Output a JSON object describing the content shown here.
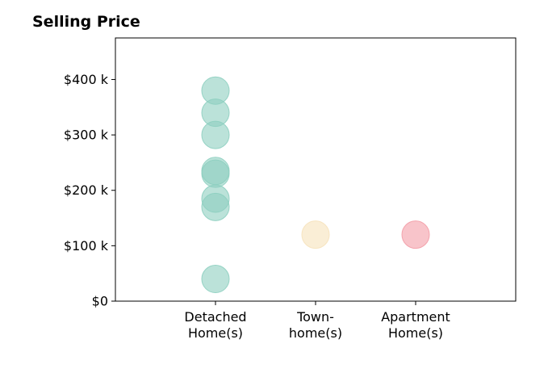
{
  "chart_data": {
    "type": "scatter",
    "title": "Selling Price",
    "xlabel": "",
    "ylabel": "",
    "categories": [
      {
        "lines": [
          "Detached",
          "Home(s)"
        ],
        "color": "#8dcfc0"
      },
      {
        "lines": [
          "Town-",
          "home(s)"
        ],
        "color": "#f6e2bb"
      },
      {
        "lines": [
          "Apartment",
          "Home(s)"
        ],
        "color": "#f39ca6"
      }
    ],
    "points": [
      {
        "category": 0,
        "y": 380000
      },
      {
        "category": 0,
        "y": 340000
      },
      {
        "category": 0,
        "y": 300000
      },
      {
        "category": 0,
        "y": 235000
      },
      {
        "category": 0,
        "y": 230000
      },
      {
        "category": 0,
        "y": 185000
      },
      {
        "category": 0,
        "y": 170000
      },
      {
        "category": 0,
        "y": 40000
      },
      {
        "category": 1,
        "y": 120000
      },
      {
        "category": 2,
        "y": 120000
      }
    ],
    "ylim": [
      0,
      475000
    ],
    "xlim": [
      -1,
      3
    ],
    "yticks": [
      {
        "value": 0,
        "label": "$0"
      },
      {
        "value": 100000,
        "label": "$100 k"
      },
      {
        "value": 200000,
        "label": "$200 k"
      },
      {
        "value": 300000,
        "label": "$300 k"
      },
      {
        "value": 400000,
        "label": "$400 k"
      }
    ],
    "grid": false,
    "legend": "none"
  }
}
